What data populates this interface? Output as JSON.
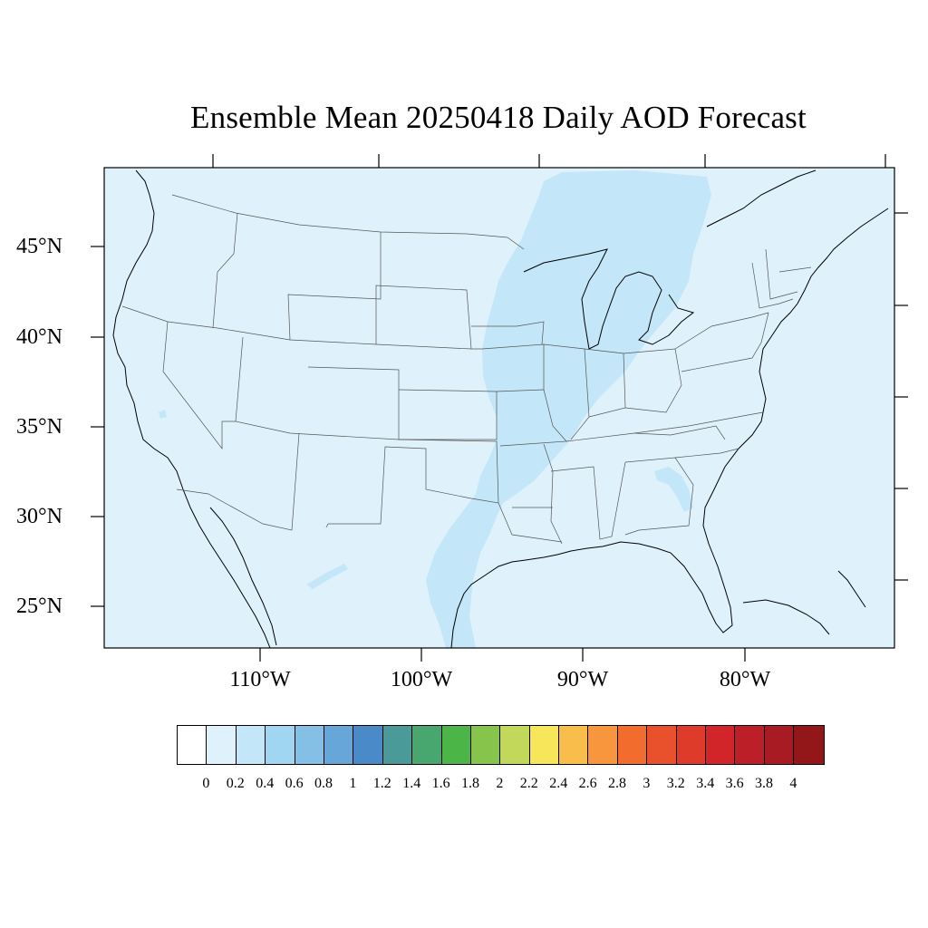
{
  "title": "Ensemble Mean 20250418 Daily AOD Forecast",
  "map": {
    "region": "contiguous-united-states",
    "projection": "lambert-conformal",
    "background_color": "#dff2fb",
    "plume_color": "#c3e6f8",
    "plume_value_range": [
      0.2,
      0.4
    ],
    "base_value_range": [
      0,
      0.2
    ],
    "lat_labels": [
      "45°N",
      "40°N",
      "35°N",
      "30°N",
      "25°N"
    ],
    "lon_labels": [
      "110°W",
      "100°W",
      "90°W",
      "80°W"
    ]
  },
  "colorbar": {
    "colors": [
      "#ffffff",
      "#dff2fb",
      "#c3e6f8",
      "#a0d6f1",
      "#84c0e6",
      "#66a6d8",
      "#4a8ac8",
      "#4a9a9a",
      "#48a76e",
      "#4bb548",
      "#86c44b",
      "#c2d85a",
      "#f8e65a",
      "#f8bd4a",
      "#f8963d",
      "#f26c2d",
      "#e9512c",
      "#de3b2b",
      "#d2252a",
      "#bd1f28",
      "#a91b22",
      "#931718"
    ],
    "labels": [
      "0",
      "0.2",
      "0.4",
      "0.6",
      "0.8",
      "1",
      "1.2",
      "1.4",
      "1.6",
      "1.8",
      "2",
      "2.2",
      "2.4",
      "2.6",
      "2.8",
      "3",
      "3.2",
      "3.4",
      "3.6",
      "3.8",
      "4"
    ]
  }
}
